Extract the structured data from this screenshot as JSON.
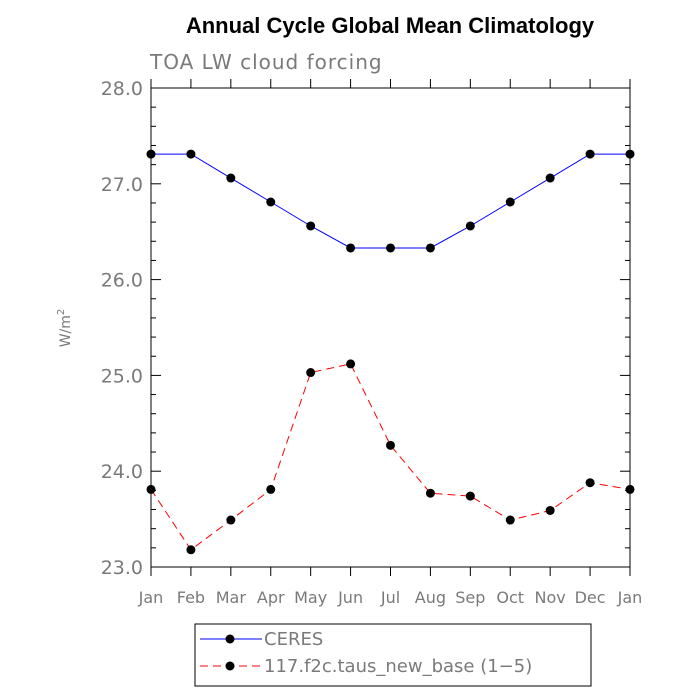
{
  "title": "Annual Cycle Global Mean Climatology",
  "subtitle": "TOA LW cloud forcing",
  "chart_data": {
    "type": "line",
    "categories": [
      "Jan",
      "Feb",
      "Mar",
      "Apr",
      "May",
      "Jun",
      "Jul",
      "Aug",
      "Sep",
      "Oct",
      "Nov",
      "Dec",
      "Jan"
    ],
    "ylabel": "W/m2",
    "ylim": [
      23.0,
      28.0
    ],
    "yticks": [
      "23.0",
      "24.0",
      "25.0",
      "26.0",
      "27.0",
      "28.0"
    ],
    "series": [
      {
        "name": "CERES",
        "color": "#0000ff",
        "dash": "solid",
        "values": [
          27.31,
          27.31,
          27.06,
          26.81,
          26.56,
          26.33,
          26.33,
          26.33,
          26.56,
          26.81,
          27.06,
          27.31,
          27.31
        ]
      },
      {
        "name": "117.f2c.taus_new_base (1−5)",
        "color": "#ff0000",
        "dash": "dashed",
        "values": [
          23.81,
          23.18,
          23.49,
          23.81,
          25.03,
          25.12,
          24.27,
          23.77,
          23.74,
          23.49,
          23.59,
          23.88,
          23.81
        ]
      }
    ]
  }
}
